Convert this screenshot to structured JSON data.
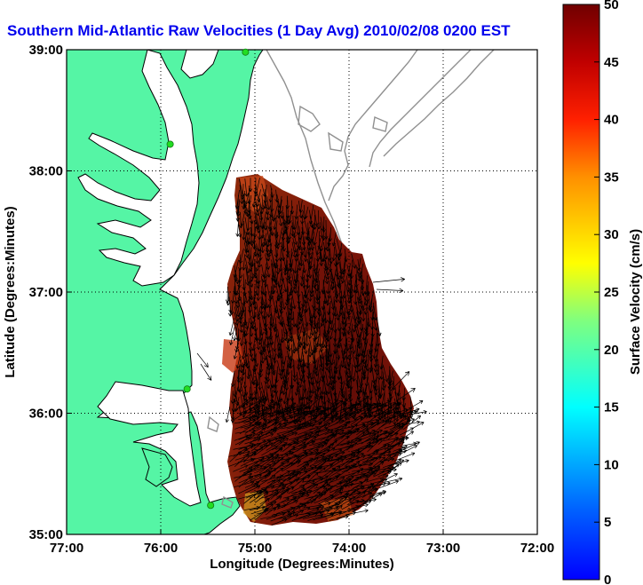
{
  "title": "Southern Mid-Atlantic Raw Velocities (1 Day Avg) 2010/02/08 0200 EST",
  "x_axis": {
    "label": "Longitude (Degrees:Minutes)",
    "ticks": [
      "77:00",
      "76:00",
      "75:00",
      "74:00",
      "73:00",
      "72:00"
    ]
  },
  "y_axis": {
    "label": "Latitude (Degrees:Minutes)",
    "ticks": [
      "39:00",
      "38:00",
      "37:00",
      "36:00",
      "35:00"
    ]
  },
  "colorbar": {
    "label": "Surface Velocity (cm/s)",
    "ticks": [
      "50",
      "45",
      "40",
      "35",
      "30",
      "25",
      "20",
      "15",
      "10",
      "5",
      "0"
    ],
    "range": [
      0,
      50
    ],
    "colormap": "jet"
  },
  "colors": {
    "land": "#55f5a5",
    "coastline": "#000000",
    "bathymetry": "#909090",
    "station": "#22dd22",
    "title": "#0000ee"
  },
  "map": {
    "lon_range": [
      -77,
      -72
    ],
    "lat_range": [
      35,
      39
    ],
    "grid": "dotted",
    "stations": [
      {
        "lat": 38.98,
        "lon": -75.1
      },
      {
        "lat": 38.22,
        "lon": -75.9
      },
      {
        "lat": 36.2,
        "lon": -75.72
      },
      {
        "lat": 35.24,
        "lon": -75.47
      }
    ]
  }
}
